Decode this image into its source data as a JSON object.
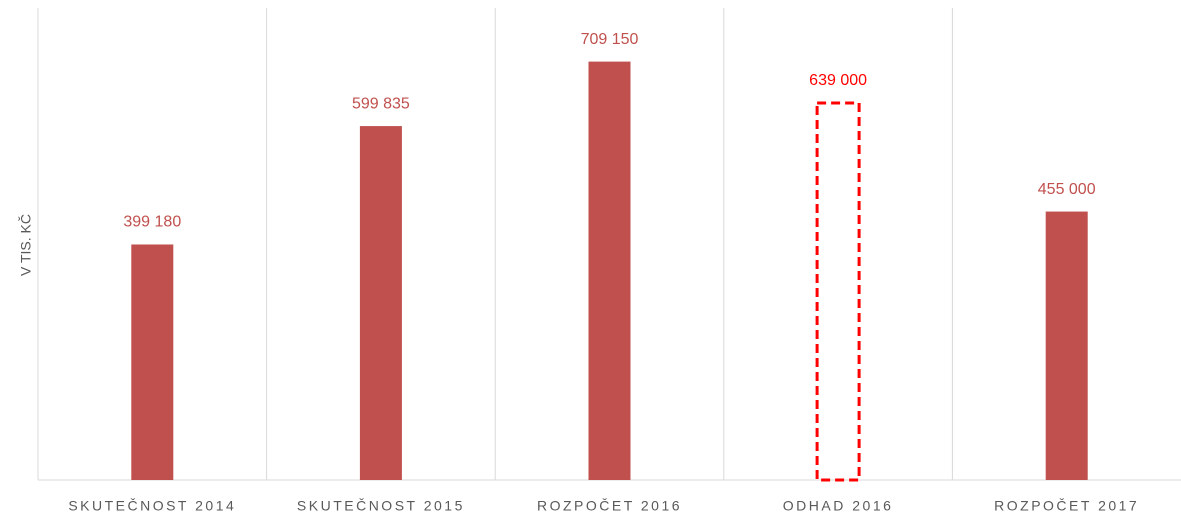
{
  "chart_data": {
    "type": "bar",
    "y_label": "V TIS. KČ",
    "categories": [
      "SKUTEČNOST 2014",
      "SKUTEČNOST 2015",
      "ROZPOČET 2016",
      "ODHAD 2016",
      "ROZPOČET 2017"
    ],
    "values": [
      399180,
      599835,
      709150,
      639000,
      455000
    ],
    "value_labels": [
      "399 180",
      "599 835",
      "709 150",
      "639 000",
      "455 000"
    ],
    "colors": [
      "#c0504d",
      "#c0504d",
      "#c0504d",
      "#ff0000",
      "#c0504d"
    ],
    "styles": [
      "solid",
      "solid",
      "solid",
      "dashed",
      "solid"
    ],
    "ylim": [
      0,
      800000
    ],
    "grid": false
  }
}
